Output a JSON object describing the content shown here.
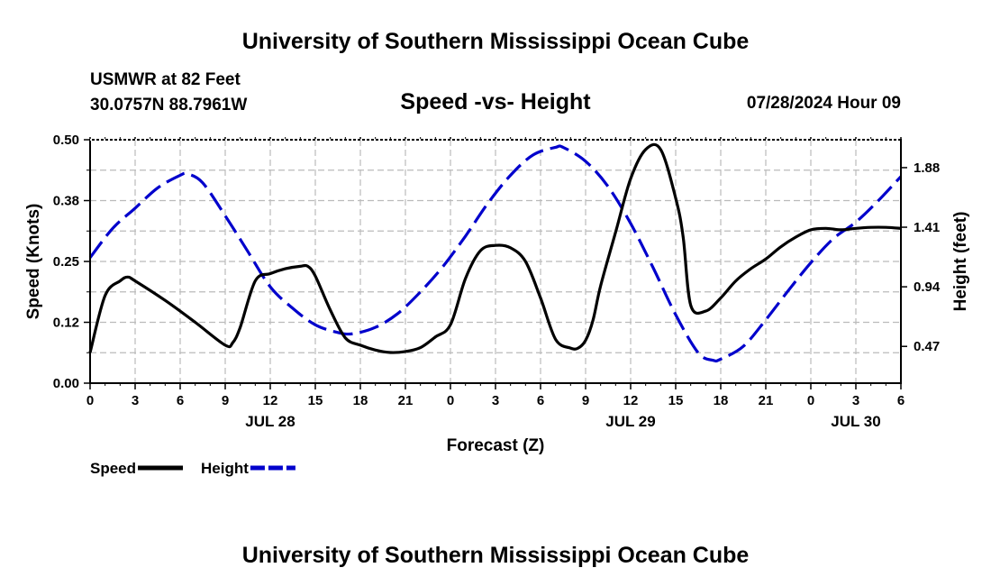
{
  "page": {
    "title_top": "University of Southern Mississippi Ocean Cube",
    "title_bottom": "University of Southern Mississippi Ocean Cube",
    "station_name": "USMWR at 82 Feet",
    "station_coords": "30.0757N  88.7961W",
    "datetime": "07/28/2024 Hour 09"
  },
  "chart_data": {
    "type": "line",
    "title": "Speed -vs- Height",
    "xlabel": "Forecast (Z)",
    "ylabel": "Speed (Knots)",
    "ylabel_right": "Height (feet)",
    "xlim": [
      0,
      54
    ],
    "ylim": [
      0,
      0.5
    ],
    "ylim_right": [
      0.18,
      2.1
    ],
    "grid": true,
    "x_ticks": [
      0,
      3,
      6,
      9,
      12,
      15,
      18,
      21,
      24,
      27,
      30,
      33,
      36,
      39,
      42,
      45,
      48,
      51,
      54
    ],
    "x_tick_labels": [
      "0",
      "3",
      "6",
      "9",
      "12",
      "15",
      "18",
      "21",
      "0",
      "3",
      "6",
      "9",
      "12",
      "15",
      "18",
      "21",
      "0",
      "3",
      "6"
    ],
    "date_labels": [
      {
        "x": 12,
        "label": "JUL 28"
      },
      {
        "x": 36,
        "label": "JUL 29"
      },
      {
        "x": 51,
        "label": "JUL 30"
      }
    ],
    "y_ticks": [
      0,
      0.125,
      0.25,
      0.375,
      0.5
    ],
    "y_tick_labels": [
      "0.00",
      "0.12",
      "0.25",
      "0.38",
      "0.50"
    ],
    "y_ticks_right": [
      0.47,
      0.94,
      1.41,
      1.88
    ],
    "y_tick_labels_right": [
      "0.47",
      "0.94",
      "1.41",
      "1.88"
    ],
    "series": [
      {
        "name": "Speed",
        "axis": "left",
        "color": "#000000",
        "dashed": false,
        "x": [
          0,
          1,
          2,
          2.5,
          3,
          5,
          7,
          9,
          9.5,
          10,
          11,
          12,
          13,
          14,
          14.5,
          15,
          16,
          17,
          18,
          19,
          20,
          21,
          22,
          23,
          24,
          25,
          26,
          27,
          28,
          29,
          30,
          31,
          32,
          32.5,
          33,
          33.5,
          34,
          35,
          36,
          37,
          38,
          39,
          39.5,
          40,
          41,
          42,
          43,
          44,
          45,
          46,
          47,
          48,
          49,
          50,
          51,
          52,
          53,
          54
        ],
        "values": [
          0.063,
          0.18,
          0.21,
          0.218,
          0.21,
          0.17,
          0.125,
          0.078,
          0.083,
          0.115,
          0.21,
          0.225,
          0.235,
          0.24,
          0.24,
          0.22,
          0.15,
          0.093,
          0.078,
          0.068,
          0.063,
          0.065,
          0.073,
          0.095,
          0.12,
          0.215,
          0.272,
          0.283,
          0.278,
          0.25,
          0.175,
          0.09,
          0.072,
          0.072,
          0.088,
          0.13,
          0.2,
          0.31,
          0.42,
          0.48,
          0.48,
          0.38,
          0.3,
          0.16,
          0.148,
          0.175,
          0.21,
          0.235,
          0.255,
          0.28,
          0.3,
          0.315,
          0.318,
          0.315,
          0.318,
          0.32,
          0.32,
          0.318
        ]
      },
      {
        "name": "Height",
        "axis": "right",
        "color": "#0000cc",
        "dashed": true,
        "x": [
          0,
          1.5,
          3,
          4.5,
          6,
          6.5,
          7.5,
          9,
          10.5,
          12,
          13.5,
          15,
          16.5,
          17.5,
          19,
          20.5,
          22,
          23.5,
          25,
          26.5,
          28,
          29.5,
          31,
          31.5,
          33,
          34.5,
          36,
          37.5,
          39,
          40.5,
          41.5,
          42,
          43.5,
          45,
          46.5,
          48,
          49.5,
          51,
          52.5,
          54
        ],
        "values": [
          1.17,
          1.4,
          1.56,
          1.72,
          1.82,
          1.83,
          1.76,
          1.5,
          1.22,
          0.94,
          0.77,
          0.64,
          0.58,
          0.57,
          0.62,
          0.73,
          0.9,
          1.1,
          1.34,
          1.6,
          1.82,
          1.98,
          2.04,
          2.04,
          1.93,
          1.73,
          1.44,
          1.09,
          0.72,
          0.42,
          0.36,
          0.37,
          0.47,
          0.68,
          0.91,
          1.13,
          1.32,
          1.45,
          1.62,
          1.81
        ]
      }
    ],
    "legend": [
      {
        "label": "Speed",
        "color": "#000000",
        "dashed": false
      },
      {
        "label": "Height",
        "color": "#0000cc",
        "dashed": true
      }
    ]
  }
}
